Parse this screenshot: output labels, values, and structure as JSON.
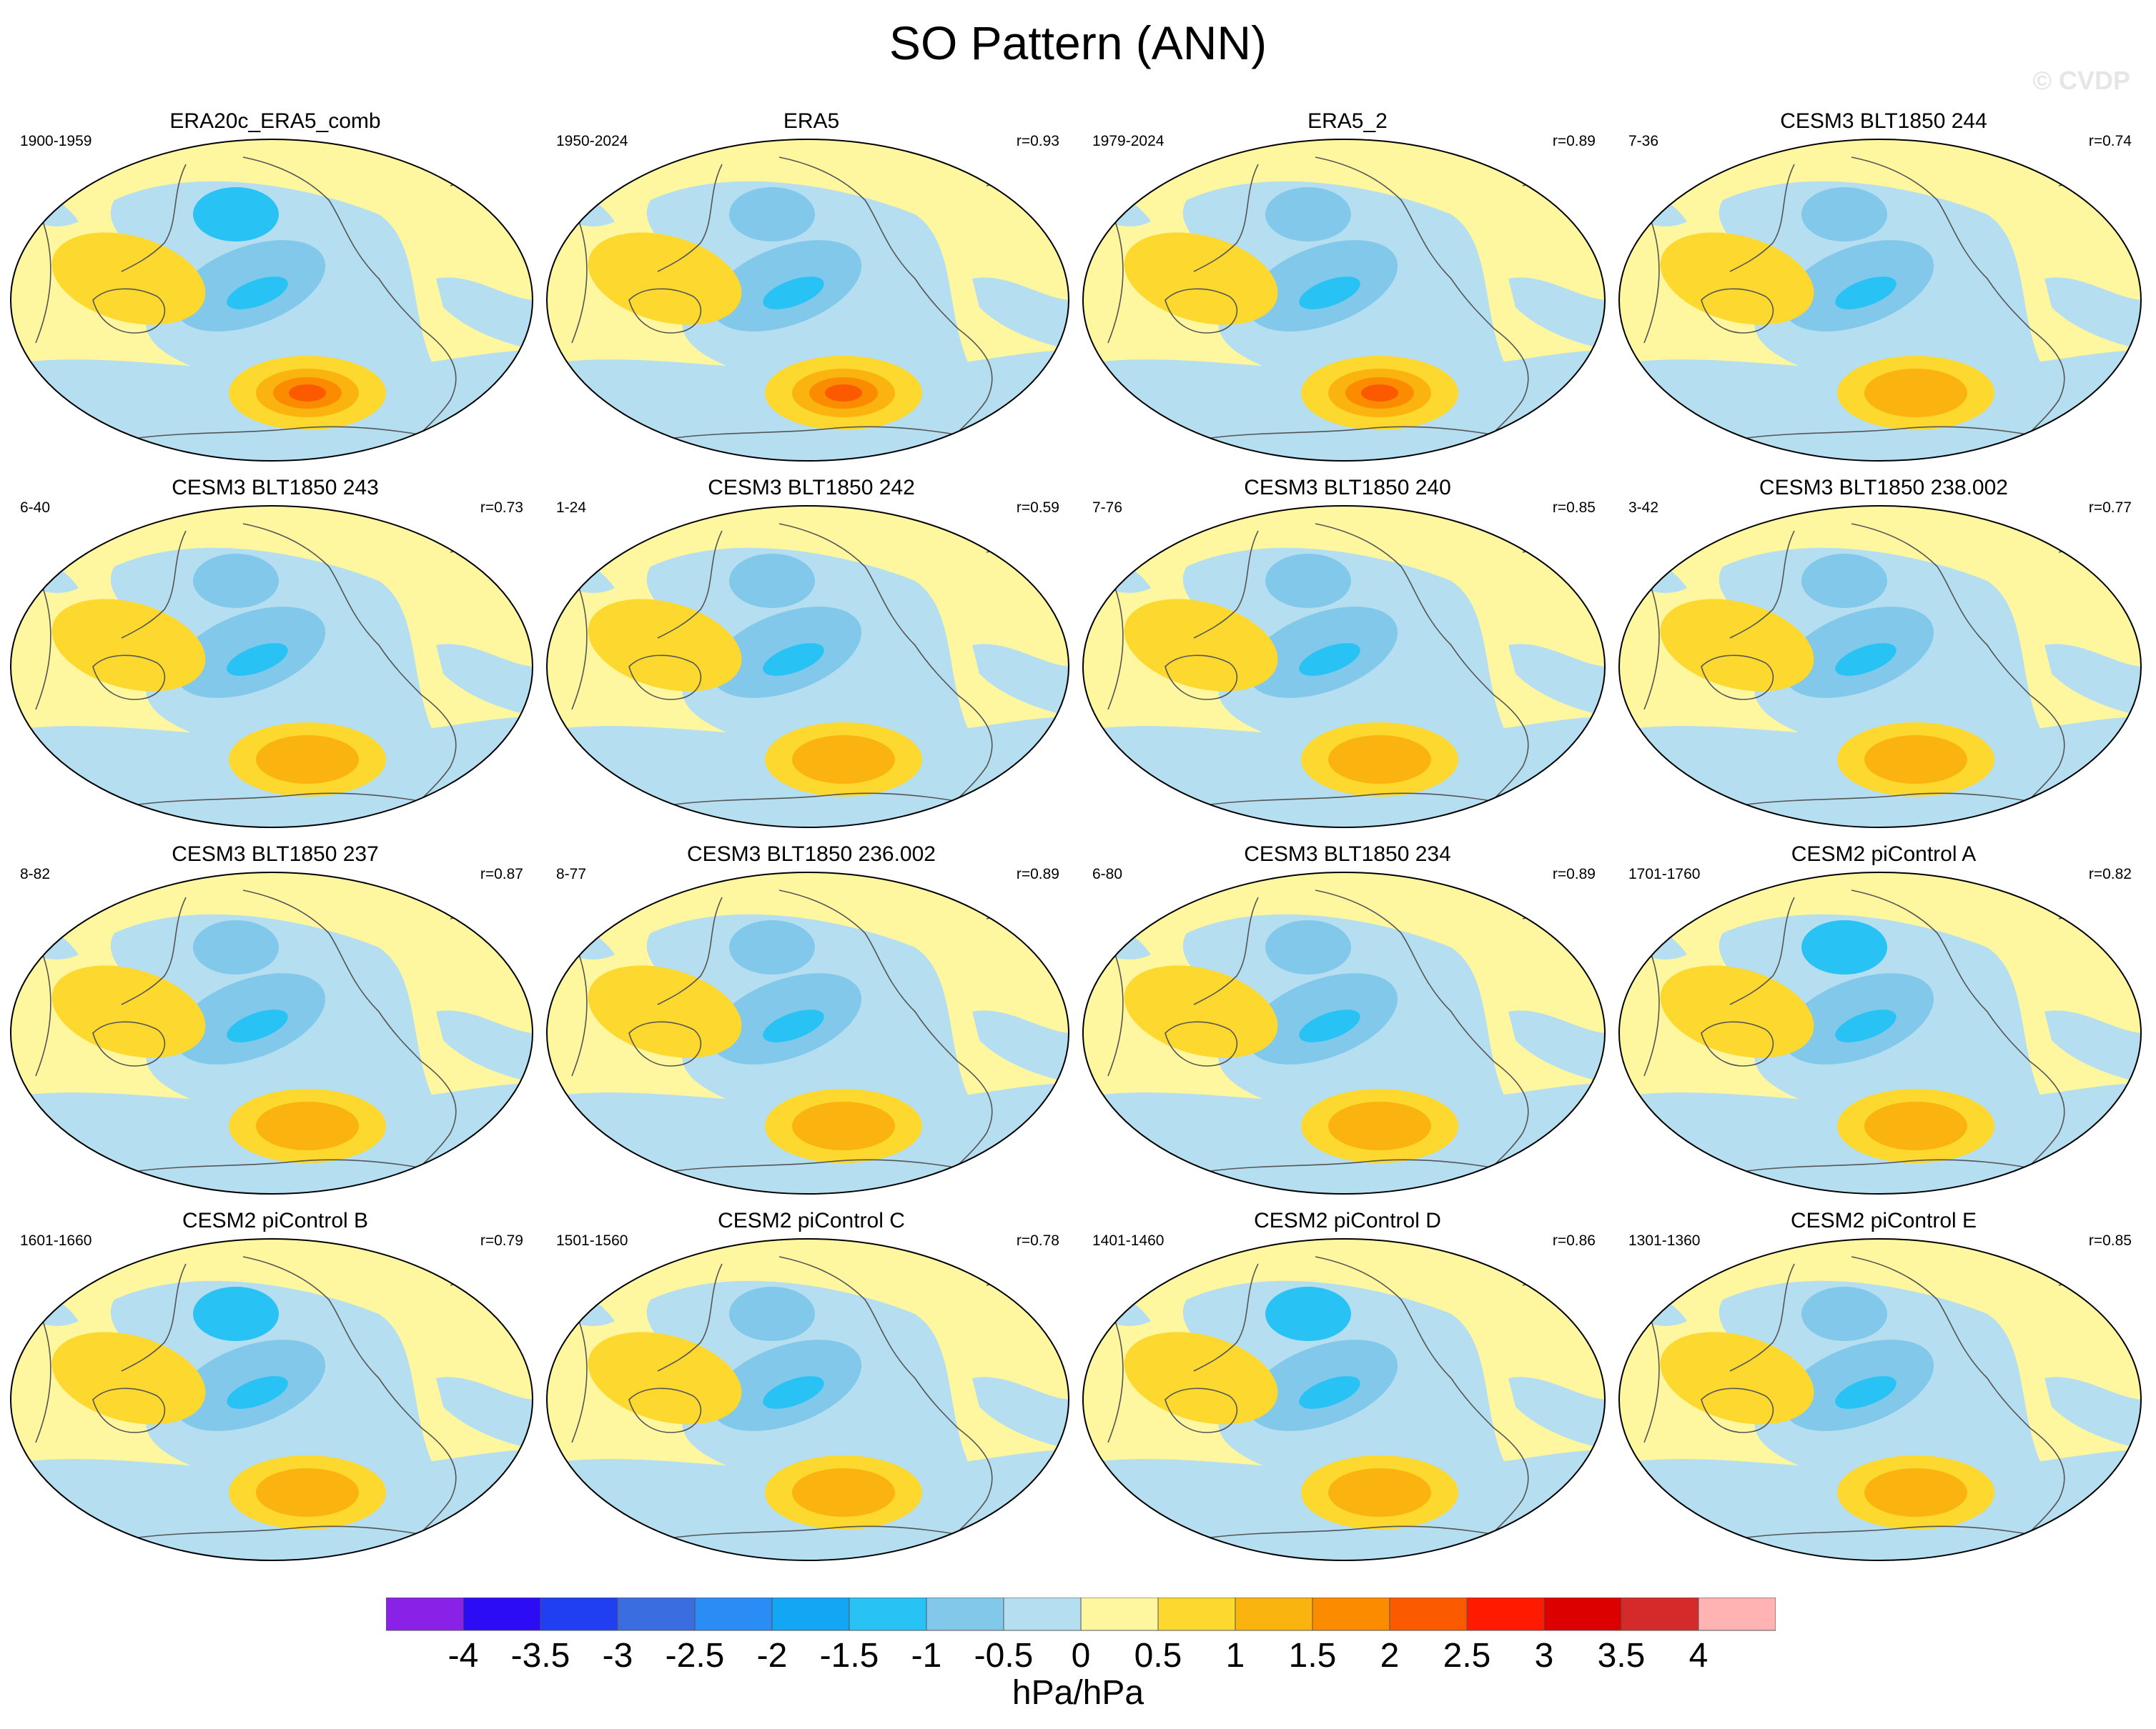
{
  "figure": {
    "title": "SO Pattern (ANN)",
    "watermark": "© CVDP",
    "units": "hPa/hPa"
  },
  "colors": {
    "ocean_neutral": "#b5def0",
    "land_neutral": "#fff7a0",
    "coastline": "#555555"
  },
  "colorbar": {
    "levels": [
      -4,
      -3.5,
      -3,
      -2.5,
      -2,
      -1.5,
      -1,
      -0.5,
      0,
      0.5,
      1,
      1.5,
      2,
      2.5,
      3,
      3.5,
      4
    ],
    "labels": [
      "-4",
      "-3.5",
      "-3",
      "-2.5",
      "-2",
      "-1.5",
      "-1",
      "-0.5",
      "0",
      "0.5",
      "1",
      "1.5",
      "2",
      "2.5",
      "3",
      "3.5",
      "4"
    ],
    "colors": [
      "#8a21e6",
      "#2b0cf5",
      "#1f3ff0",
      "#3a6ee0",
      "#2a8cf5",
      "#12a6f5",
      "#28c2f5",
      "#82c8ea",
      "#b5def0",
      "#fff7a0",
      "#fdd82f",
      "#fbb40f",
      "#fb8c00",
      "#fb5a00",
      "#ff1a00",
      "#dd0000",
      "#d42a2a",
      "#ffb3b3"
    ]
  },
  "chart_data": {
    "type": "map",
    "projection": "Robinson",
    "title": "SO Pattern (ANN)",
    "units": "hPa/hPa",
    "panels": [
      {
        "name": "ERA20c_ERA5_comb",
        "period": "1900-1959",
        "r": ""
      },
      {
        "name": "ERA5",
        "period": "1950-2024",
        "r": "r=0.93"
      },
      {
        "name": "ERA5_2",
        "period": "1979-2024",
        "r": "r=0.89"
      },
      {
        "name": "CESM3 BLT1850 244",
        "period": "7-36",
        "r": "r=0.74"
      },
      {
        "name": "CESM3 BLT1850 243",
        "period": "6-40",
        "r": "r=0.73"
      },
      {
        "name": "CESM3 BLT1850 242",
        "period": "1-24",
        "r": "r=0.59"
      },
      {
        "name": "CESM3 BLT1850 240",
        "period": "7-76",
        "r": "r=0.85"
      },
      {
        "name": "CESM3 BLT1850 238.002",
        "period": "3-42",
        "r": "r=0.77"
      },
      {
        "name": "CESM3 BLT1850 237",
        "period": "8-82",
        "r": "r=0.87"
      },
      {
        "name": "CESM3 BLT1850 236.002",
        "period": "8-77",
        "r": "r=0.89"
      },
      {
        "name": "CESM3 BLT1850 234",
        "period": "6-80",
        "r": "r=0.89"
      },
      {
        "name": "CESM2 piControl A",
        "period": "1701-1760",
        "r": "r=0.82"
      },
      {
        "name": "CESM2 piControl B",
        "period": "1601-1660",
        "r": "r=0.79"
      },
      {
        "name": "CESM2 piControl C",
        "period": "1501-1560",
        "r": "r=0.78"
      },
      {
        "name": "CESM2 piControl D",
        "period": "1401-1460",
        "r": "r=0.86"
      },
      {
        "name": "CESM2 piControl E",
        "period": "1301-1360",
        "r": "r=0.85"
      }
    ]
  }
}
